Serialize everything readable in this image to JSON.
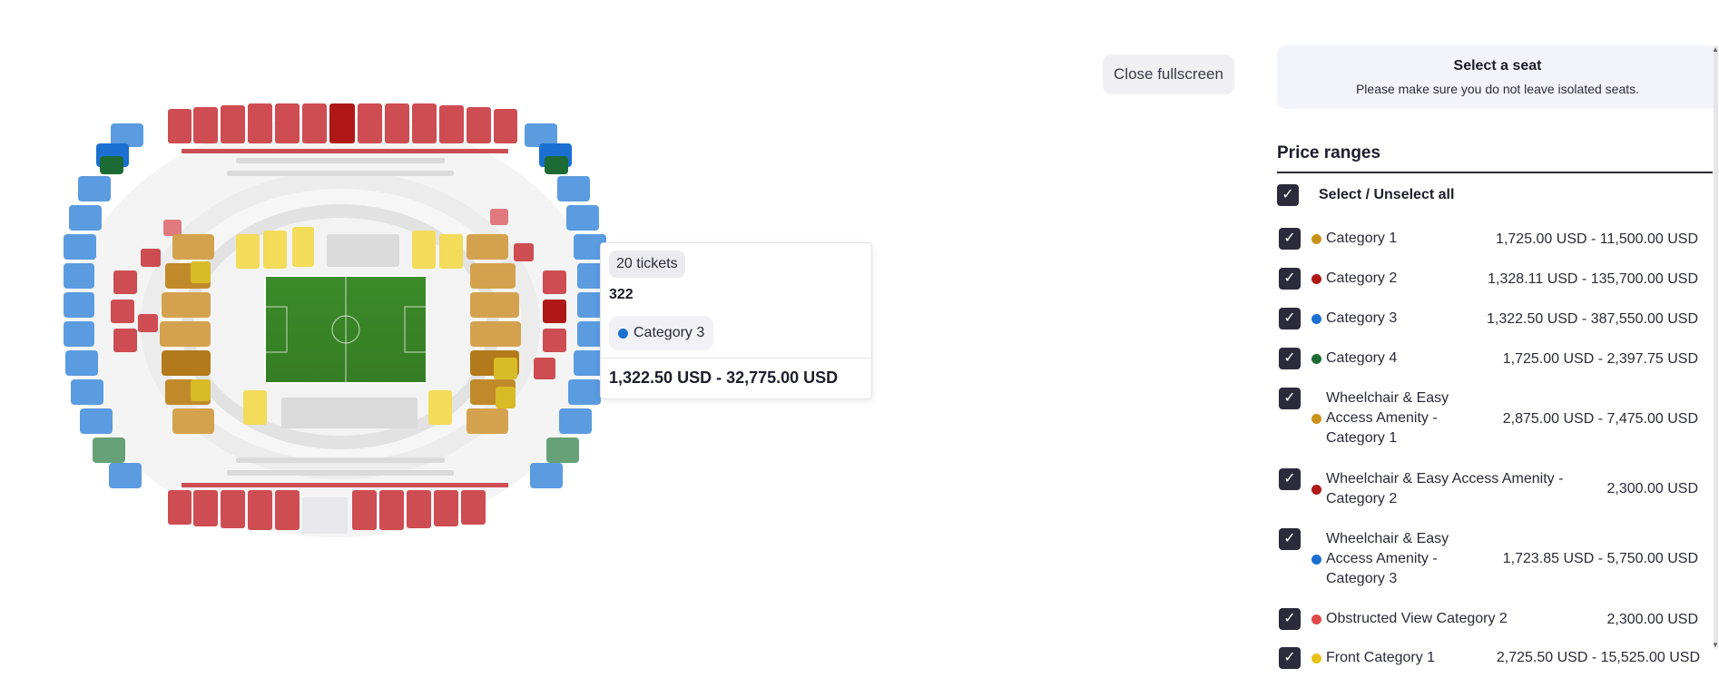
{
  "toolbar": {
    "close_fullscreen": "Close fullscreen"
  },
  "info": {
    "title": "Select a seat",
    "subtitle": "Please make sure you do not leave isolated seats."
  },
  "tooltip": {
    "tickets": "20 tickets",
    "section": "322",
    "category": "Category 3",
    "category_color": "#1a6fd1",
    "price": "1,322.50 USD - 32,775.00 USD"
  },
  "price_ranges": {
    "title": "Price ranges",
    "select_all": "Select / Unselect all",
    "items": [
      {
        "label": "Category 1",
        "price": "1,725.00 USD - 11,500.00 USD",
        "color": "#c8911a",
        "checked": true
      },
      {
        "label": "Category 2",
        "price": "1,328.11 USD - 135,700.00 USD",
        "color": "#b01818",
        "checked": true
      },
      {
        "label": "Category 3",
        "price": "1,322.50 USD - 387,550.00 USD",
        "color": "#1a6fd1",
        "checked": true
      },
      {
        "label": "Category 4",
        "price": "1,725.00 USD - 2,397.75 USD",
        "color": "#1c6b35",
        "checked": true
      },
      {
        "label": "Wheelchair & Easy Access Amenity - Category 1",
        "price": "2,875.00 USD - 7,475.00 USD",
        "color": "#c8911a",
        "checked": true
      },
      {
        "label": "Wheelchair & Easy Access Amenity - Category 2",
        "price": "2,300.00 USD",
        "color": "#b01818",
        "checked": true
      },
      {
        "label": "Wheelchair & Easy Access Amenity - Category 3",
        "price": "1,723.85 USD - 5,750.00 USD",
        "color": "#1a6fd1",
        "checked": true
      },
      {
        "label": "Obstructed View Category 2",
        "price": "2,300.00 USD",
        "color": "#e04848",
        "checked": true
      },
      {
        "label": "Front Category 1",
        "price": "2,725.50 USD - 15,525.00 USD",
        "color": "#e8c21a",
        "checked": true
      }
    ]
  },
  "map": {
    "colors": {
      "red": "#cd4d52",
      "blue": "#5b9be0",
      "green_light": "#66a177",
      "gold": "#d4a24e",
      "yellow": "#f2dc5a",
      "pitch": "#3c8a2a"
    }
  }
}
